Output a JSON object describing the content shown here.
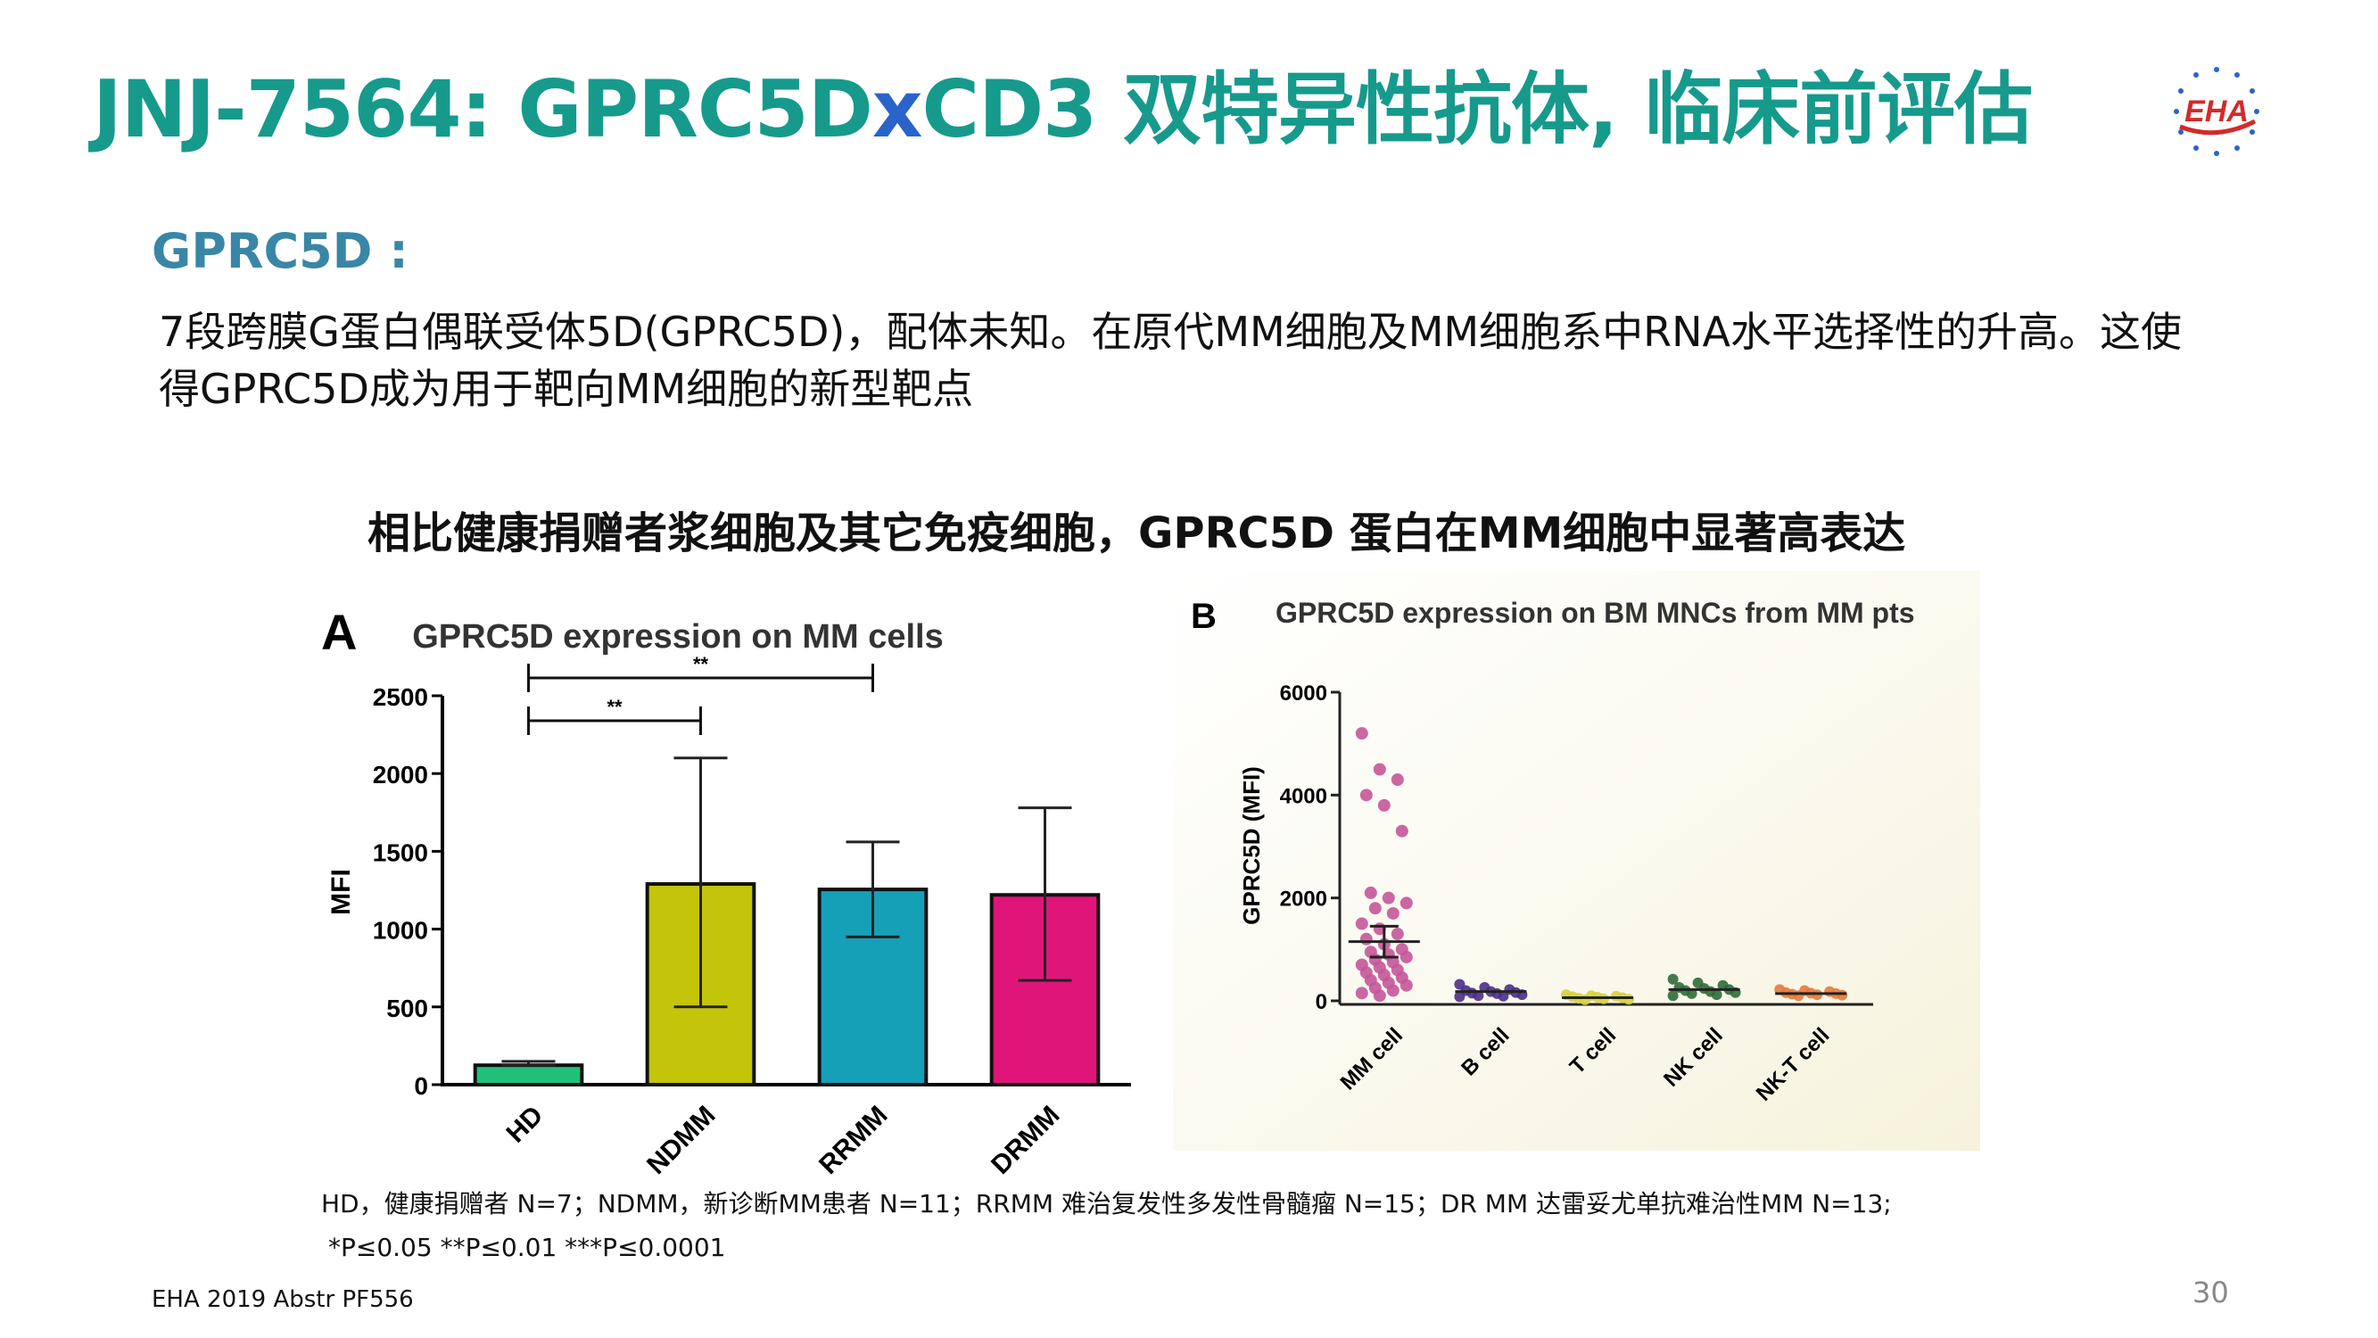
{
  "slide": {
    "title_prefix": "JNJ-7564: GPRC5D",
    "title_x": "x",
    "title_suffix": "CD3 双特异性抗体, 临床前评估",
    "logo_text": "EHA",
    "section_head": "GPRC5D :",
    "paragraph": "7段跨膜G蛋白偶联受体5D(GPRC5D)，配体未知。在原代MM细胞及MM细胞系中RNA水平选择性的升高。这使得GPRC5D成为用于靶向MM细胞的新型靶点",
    "subtitle": "相比健康捐赠者浆细胞及其它免疫细胞，GPRC5D 蛋白在MM细胞中显著高表达",
    "footnote": "HD，健康捐赠者 N=7；NDMM，新诊断MM患者 N=11；RRMM 难治复发性多发性骨髓瘤 N=15；DR MM 达雷妥尤单抗难治性MM N=13;",
    "pvalues": "*P≤0.05 **P≤0.01 ***P≤0.0001",
    "reference": "EHA 2019 Abstr PF556",
    "page_number": "30"
  },
  "colors": {
    "title": "#169a8c",
    "title_x": "#2a63c9",
    "section": "#3a86a6"
  },
  "chart_data": [
    {
      "type": "bar",
      "panel": "A",
      "title": "GPRC5D expression on MM cells",
      "ylabel": "MFI",
      "xlabel": "",
      "categories": [
        "HD",
        "NDMM",
        "RRMM",
        "DRMM"
      ],
      "values": [
        125,
        1290,
        1255,
        1220
      ],
      "error_upper": [
        150,
        2100,
        1560,
        1780
      ],
      "error_lower": [
        125,
        500,
        950,
        670
      ],
      "colors": [
        "#21c07a",
        "#c4c40a",
        "#16a0b8",
        "#e0157a"
      ],
      "ylim": [
        0,
        2500
      ],
      "yticks": [
        0,
        500,
        1000,
        1500,
        2000,
        2500
      ],
      "significance": [
        {
          "from": "HD",
          "to": "NDMM",
          "label": "**"
        },
        {
          "from": "HD",
          "to": "RRMM",
          "label": "**"
        }
      ]
    },
    {
      "type": "scatter",
      "panel": "B",
      "title": "GPRC5D expression on BM MNCs from MM pts",
      "ylabel": "GPRC5D (MFI)",
      "xlabel": "",
      "categories": [
        "MM cell",
        "B cell",
        "T cell",
        "NK cell",
        "NK-T cell"
      ],
      "colors": [
        "#c4579a",
        "#4a2d86",
        "#d6d23a",
        "#2f6b3a",
        "#e47a3c"
      ],
      "ylim": [
        0,
        6000
      ],
      "yticks": [
        0,
        2000,
        4000,
        6000
      ],
      "means": [
        1150,
        180,
        60,
        220,
        140
      ],
      "points": [
        [
          5200,
          4500,
          4300,
          4000,
          3800,
          3300,
          2100,
          2000,
          1900,
          1800,
          1700,
          1500,
          1400,
          1300,
          1200,
          1100,
          1000,
          950,
          900,
          850,
          800,
          750,
          700,
          650,
          600,
          550,
          500,
          450,
          400,
          350,
          300,
          250,
          200,
          150,
          100
        ],
        [
          320,
          260,
          220,
          200,
          180,
          160,
          150,
          140,
          120,
          100,
          90,
          80
        ],
        [
          120,
          100,
          90,
          80,
          70,
          60,
          50,
          40,
          30,
          20
        ],
        [
          420,
          350,
          300,
          260,
          240,
          220,
          200,
          180,
          160,
          140,
          120,
          100
        ],
        [
          220,
          200,
          180,
          160,
          150,
          140,
          130,
          120,
          110,
          100
        ]
      ]
    }
  ]
}
